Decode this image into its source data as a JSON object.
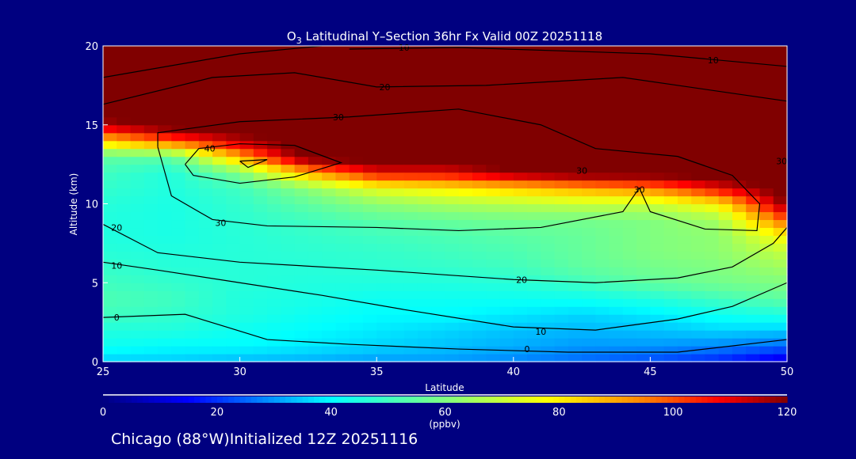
{
  "chart_data": {
    "type": "heatmap",
    "title_main": "O",
    "title_sub": "3",
    "title_rest": " Latitudinal Y–Section 36hr  Fx Valid 00Z 20251118",
    "xlabel": "Latitude",
    "ylabel": "Altitude (km)",
    "xlim": [
      25,
      50
    ],
    "ylim": [
      0,
      20
    ],
    "xticks": [
      "25",
      "30",
      "35",
      "40",
      "45",
      "50"
    ],
    "yticks": [
      "0",
      "5",
      "10",
      "15",
      "20"
    ],
    "lat": [
      25,
      27.5,
      30,
      32.5,
      35,
      37.5,
      40,
      42.5,
      45,
      47.5,
      50
    ],
    "alt": [
      0,
      1,
      2,
      3,
      4,
      5,
      6,
      7,
      8,
      9,
      10,
      11,
      12,
      13,
      14,
      15,
      16,
      17,
      18,
      19,
      20
    ],
    "values": [
      [
        35,
        35,
        33,
        32,
        30,
        30,
        28,
        25,
        22,
        18,
        10
      ],
      [
        42,
        40,
        40,
        38,
        36,
        34,
        32,
        30,
        30,
        28,
        25
      ],
      [
        45,
        45,
        42,
        40,
        38,
        36,
        34,
        33,
        34,
        36,
        35
      ],
      [
        50,
        48,
        45,
        42,
        40,
        40,
        38,
        36,
        38,
        42,
        45
      ],
      [
        52,
        50,
        45,
        44,
        42,
        42,
        42,
        42,
        45,
        50,
        55
      ],
      [
        50,
        48,
        46,
        45,
        45,
        45,
        46,
        50,
        55,
        58,
        60
      ],
      [
        48,
        46,
        46,
        46,
        47,
        48,
        50,
        55,
        58,
        60,
        65
      ],
      [
        46,
        45,
        46,
        47,
        48,
        50,
        52,
        56,
        60,
        62,
        70
      ],
      [
        45,
        44,
        46,
        48,
        50,
        52,
        54,
        56,
        60,
        62,
        80
      ],
      [
        45,
        44,
        47,
        50,
        54,
        56,
        58,
        58,
        60,
        65,
        100
      ],
      [
        46,
        44,
        48,
        55,
        62,
        66,
        68,
        70,
        70,
        80,
        120
      ],
      [
        48,
        45,
        50,
        62,
        75,
        80,
        85,
        90,
        95,
        110,
        125
      ],
      [
        50,
        45,
        60,
        90,
        110,
        110,
        120,
        125,
        125,
        125,
        125
      ],
      [
        55,
        55,
        90,
        125,
        125,
        125,
        125,
        125,
        125,
        125,
        125
      ],
      [
        85,
        100,
        115,
        125,
        125,
        125,
        125,
        125,
        125,
        125,
        125
      ],
      [
        115,
        125,
        125,
        125,
        125,
        125,
        125,
        125,
        125,
        125,
        125
      ],
      [
        125,
        125,
        125,
        125,
        125,
        125,
        125,
        125,
        125,
        125,
        125
      ],
      [
        125,
        125,
        125,
        125,
        125,
        125,
        125,
        125,
        125,
        125,
        125
      ],
      [
        125,
        125,
        125,
        125,
        125,
        125,
        125,
        125,
        125,
        125,
        125
      ],
      [
        125,
        125,
        125,
        125,
        125,
        125,
        125,
        125,
        125,
        125,
        125
      ],
      [
        125,
        125,
        125,
        125,
        125,
        125,
        125,
        125,
        125,
        125,
        125
      ]
    ],
    "contours": [
      {
        "level": 40,
        "points": [
          [
            28,
            12.5
          ],
          [
            28.5,
            13.5
          ],
          [
            30,
            13.8
          ],
          [
            32,
            13.7
          ],
          [
            33.7,
            12.6
          ],
          [
            32,
            11.7
          ],
          [
            30,
            11.3
          ],
          [
            28.3,
            11.8
          ],
          [
            28,
            12.5
          ]
        ]
      },
      {
        "level": 40,
        "points": [
          [
            30,
            12.7
          ],
          [
            30.3,
            12.3
          ],
          [
            31,
            12.8
          ],
          [
            30,
            12.7
          ]
        ]
      },
      {
        "level": 30,
        "points": [
          [
            27,
            13.6
          ],
          [
            27.5,
            10.5
          ],
          [
            29,
            9
          ],
          [
            31,
            8.6
          ],
          [
            35,
            8.5
          ],
          [
            38,
            8.3
          ],
          [
            41,
            8.5
          ],
          [
            44,
            9.5
          ],
          [
            44.6,
            11.0
          ],
          [
            45,
            9.5
          ],
          [
            47,
            8.4
          ],
          [
            48.9,
            8.3
          ],
          [
            49,
            10
          ],
          [
            48,
            11.8
          ],
          [
            46,
            13
          ],
          [
            43,
            13.5
          ],
          [
            41,
            15
          ],
          [
            38,
            16
          ],
          [
            34,
            15.5
          ],
          [
            30,
            15.2
          ],
          [
            27,
            14.5
          ],
          [
            27,
            13.6
          ]
        ]
      },
      {
        "level": 20,
        "points": [
          [
            25,
            8.7
          ],
          [
            27,
            6.9
          ],
          [
            30,
            6.3
          ],
          [
            35,
            5.8
          ],
          [
            40,
            5.2
          ],
          [
            43,
            5.0
          ],
          [
            46,
            5.3
          ],
          [
            48,
            6
          ],
          [
            49.5,
            7.5
          ],
          [
            50,
            8.5
          ]
        ]
      },
      {
        "level": 20,
        "points": [
          [
            25,
            16.3
          ],
          [
            29,
            18
          ],
          [
            32,
            18.3
          ],
          [
            35,
            17.4
          ],
          [
            39,
            17.5
          ],
          [
            44,
            18.0
          ],
          [
            50,
            16.5
          ]
        ]
      },
      {
        "level": 10,
        "points": [
          [
            25,
            6.3
          ],
          [
            27,
            5.8
          ],
          [
            30,
            5.0
          ],
          [
            33,
            4.2
          ],
          [
            36,
            3.3
          ],
          [
            40,
            2.2
          ],
          [
            43,
            2.0
          ],
          [
            46,
            2.7
          ],
          [
            48,
            3.5
          ],
          [
            50,
            5
          ]
        ]
      },
      {
        "level": 10,
        "points": [
          [
            25,
            18
          ],
          [
            30,
            19.5
          ],
          [
            33,
            20
          ]
        ]
      },
      {
        "level": 10,
        "points": [
          [
            34,
            19.8
          ],
          [
            38,
            19.9
          ],
          [
            45,
            19.5
          ],
          [
            50,
            18.7
          ]
        ]
      },
      {
        "level": 0,
        "points": [
          [
            25,
            2.8
          ],
          [
            26.5,
            2.9
          ],
          [
            28,
            3.0
          ],
          [
            29.5,
            2.2
          ],
          [
            31,
            1.4
          ],
          [
            34,
            1.1
          ],
          [
            38,
            0.8
          ],
          [
            42,
            0.6
          ],
          [
            46,
            0.6
          ],
          [
            50,
            1.4
          ]
        ]
      }
    ],
    "contour_labels": [
      {
        "text": "10",
        "lat": 36,
        "alt": 19.9
      },
      {
        "text": "10",
        "lat": 47.3,
        "alt": 19.1
      },
      {
        "text": "20",
        "lat": 35.3,
        "alt": 17.4
      },
      {
        "text": "30",
        "lat": 33.6,
        "alt": 15.5
      },
      {
        "text": "40",
        "lat": 28.9,
        "alt": 13.5
      },
      {
        "text": "30",
        "lat": 29.3,
        "alt": 8.8
      },
      {
        "text": "20",
        "lat": 25.5,
        "alt": 8.5
      },
      {
        "text": "10",
        "lat": 25.5,
        "alt": 6.1
      },
      {
        "text": "0",
        "lat": 25.5,
        "alt": 2.8
      },
      {
        "text": "20",
        "lat": 40.3,
        "alt": 5.2
      },
      {
        "text": "10",
        "lat": 41,
        "alt": 1.9
      },
      {
        "text": "0",
        "lat": 40.5,
        "alt": 0.8
      },
      {
        "text": "30",
        "lat": 44.6,
        "alt": 10.9
      },
      {
        "text": "30",
        "lat": 42.5,
        "alt": 12.1
      },
      {
        "text": "30",
        "lat": 49.8,
        "alt": 12.7
      }
    ],
    "colorbar": {
      "range": [
        0,
        120
      ],
      "ticks": [
        "0",
        "20",
        "40",
        "60",
        "80",
        "100",
        "120"
      ],
      "label": "(ppbv)",
      "stops": [
        [
          0,
          "#000080"
        ],
        [
          15,
          "#0000ff"
        ],
        [
          40,
          "#00ffff"
        ],
        [
          60,
          "#80ff80"
        ],
        [
          78,
          "#ffff00"
        ],
        [
          95,
          "#ff8000"
        ],
        [
          108,
          "#ff0000"
        ],
        [
          120,
          "#800000"
        ]
      ]
    }
  },
  "footer": "Chicago (88°W)Initialized 12Z 20251116"
}
